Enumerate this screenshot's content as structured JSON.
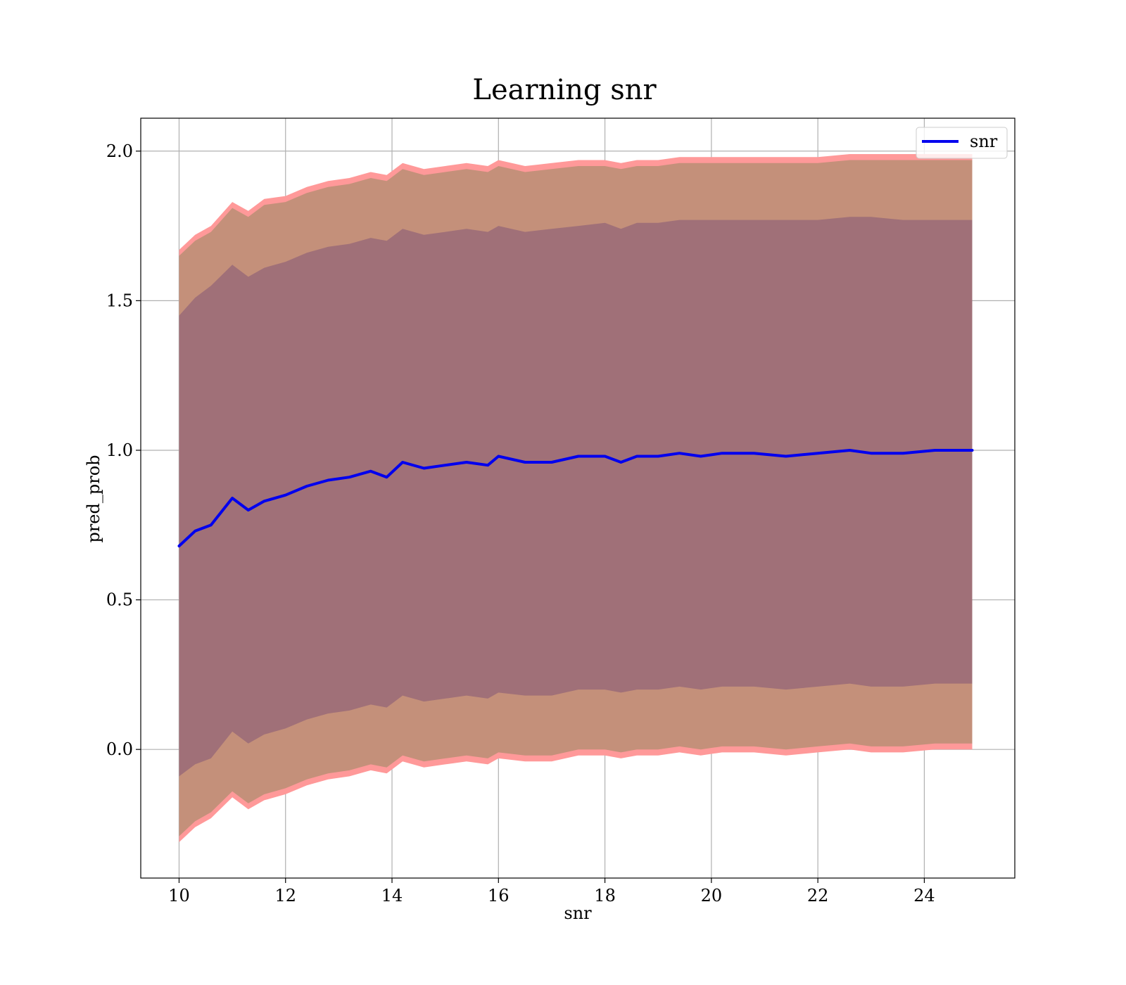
{
  "chart_data": {
    "type": "line",
    "title": "Learning snr",
    "xlabel": "snr",
    "ylabel": "pred_prob",
    "xlim": [
      9.28,
      25.7
    ],
    "ylim": [
      -0.43,
      2.11
    ],
    "xticks": [
      10,
      12,
      14,
      16,
      18,
      20,
      22,
      24
    ],
    "yticks": [
      0.0,
      0.5,
      1.0,
      1.5,
      2.0
    ],
    "xtick_labels": [
      "10",
      "12",
      "14",
      "16",
      "18",
      "20",
      "22",
      "24"
    ],
    "ytick_labels": [
      "0.0",
      "0.5",
      "1.0",
      "1.5",
      "2.0"
    ],
    "grid": true,
    "legend": {
      "placement": "top-right",
      "entries": [
        "snr"
      ]
    },
    "colors": {
      "mean_line": "#0000ee",
      "outer_band": "#ff9999",
      "middle_band": "#c4907a",
      "inner_band": "#a07078"
    },
    "series": [
      {
        "name": "snr",
        "x": [
          10.0,
          10.3,
          10.6,
          11.0,
          11.3,
          11.6,
          12.0,
          12.4,
          12.8,
          13.2,
          13.6,
          13.9,
          14.2,
          14.6,
          15.0,
          15.4,
          15.8,
          16.0,
          16.5,
          17.0,
          17.5,
          18.0,
          18.3,
          18.6,
          19.0,
          19.4,
          19.8,
          20.2,
          20.8,
          21.4,
          22.0,
          22.6,
          23.0,
          23.6,
          24.2,
          24.9
        ],
        "mean": [
          0.68,
          0.73,
          0.75,
          0.84,
          0.8,
          0.83,
          0.85,
          0.88,
          0.9,
          0.91,
          0.93,
          0.91,
          0.96,
          0.94,
          0.95,
          0.96,
          0.95,
          0.98,
          0.96,
          0.96,
          0.98,
          0.98,
          0.96,
          0.98,
          0.98,
          0.99,
          0.98,
          0.99,
          0.99,
          0.98,
          0.99,
          1.0,
          0.99,
          0.99,
          1.0,
          1.0
        ]
      }
    ],
    "bands": {
      "outer_upper": [
        1.67,
        1.72,
        1.75,
        1.83,
        1.8,
        1.84,
        1.85,
        1.88,
        1.9,
        1.91,
        1.93,
        1.92,
        1.96,
        1.94,
        1.95,
        1.96,
        1.95,
        1.97,
        1.95,
        1.96,
        1.97,
        1.97,
        1.96,
        1.97,
        1.97,
        1.98,
        1.98,
        1.98,
        1.98,
        1.98,
        1.98,
        1.99,
        1.99,
        1.99,
        1.99,
        1.99
      ],
      "middle_upper": [
        1.65,
        1.7,
        1.73,
        1.81,
        1.78,
        1.82,
        1.83,
        1.86,
        1.88,
        1.89,
        1.91,
        1.9,
        1.94,
        1.92,
        1.93,
        1.94,
        1.93,
        1.95,
        1.93,
        1.94,
        1.95,
        1.95,
        1.94,
        1.95,
        1.95,
        1.96,
        1.96,
        1.96,
        1.96,
        1.96,
        1.96,
        1.97,
        1.97,
        1.97,
        1.97,
        1.97
      ],
      "inner_upper": [
        1.45,
        1.51,
        1.55,
        1.62,
        1.58,
        1.61,
        1.63,
        1.66,
        1.68,
        1.69,
        1.71,
        1.7,
        1.74,
        1.72,
        1.73,
        1.74,
        1.73,
        1.75,
        1.73,
        1.74,
        1.75,
        1.76,
        1.74,
        1.76,
        1.76,
        1.77,
        1.77,
        1.77,
        1.77,
        1.77,
        1.77,
        1.78,
        1.78,
        1.77,
        1.77,
        1.77
      ],
      "inner_lower": [
        -0.09,
        -0.05,
        -0.03,
        0.06,
        0.02,
        0.05,
        0.07,
        0.1,
        0.12,
        0.13,
        0.15,
        0.14,
        0.18,
        0.16,
        0.17,
        0.18,
        0.17,
        0.19,
        0.18,
        0.18,
        0.2,
        0.2,
        0.19,
        0.2,
        0.2,
        0.21,
        0.2,
        0.21,
        0.21,
        0.2,
        0.21,
        0.22,
        0.21,
        0.21,
        0.22,
        0.22
      ],
      "middle_lower": [
        -0.29,
        -0.24,
        -0.21,
        -0.14,
        -0.18,
        -0.15,
        -0.13,
        -0.1,
        -0.08,
        -0.07,
        -0.05,
        -0.06,
        -0.02,
        -0.04,
        -0.03,
        -0.02,
        -0.03,
        -0.01,
        -0.02,
        -0.02,
        0.0,
        0.0,
        -0.01,
        0.0,
        0.0,
        0.01,
        0.0,
        0.01,
        0.01,
        0.0,
        0.01,
        0.02,
        0.01,
        0.01,
        0.02,
        0.02
      ],
      "outer_lower": [
        -0.31,
        -0.26,
        -0.23,
        -0.16,
        -0.2,
        -0.17,
        -0.15,
        -0.12,
        -0.1,
        -0.09,
        -0.07,
        -0.08,
        -0.04,
        -0.06,
        -0.05,
        -0.04,
        -0.05,
        -0.03,
        -0.04,
        -0.04,
        -0.02,
        -0.02,
        -0.03,
        -0.02,
        -0.02,
        -0.01,
        -0.02,
        -0.01,
        -0.01,
        -0.02,
        -0.01,
        0.0,
        -0.01,
        -0.01,
        0.0,
        0.0
      ]
    }
  }
}
